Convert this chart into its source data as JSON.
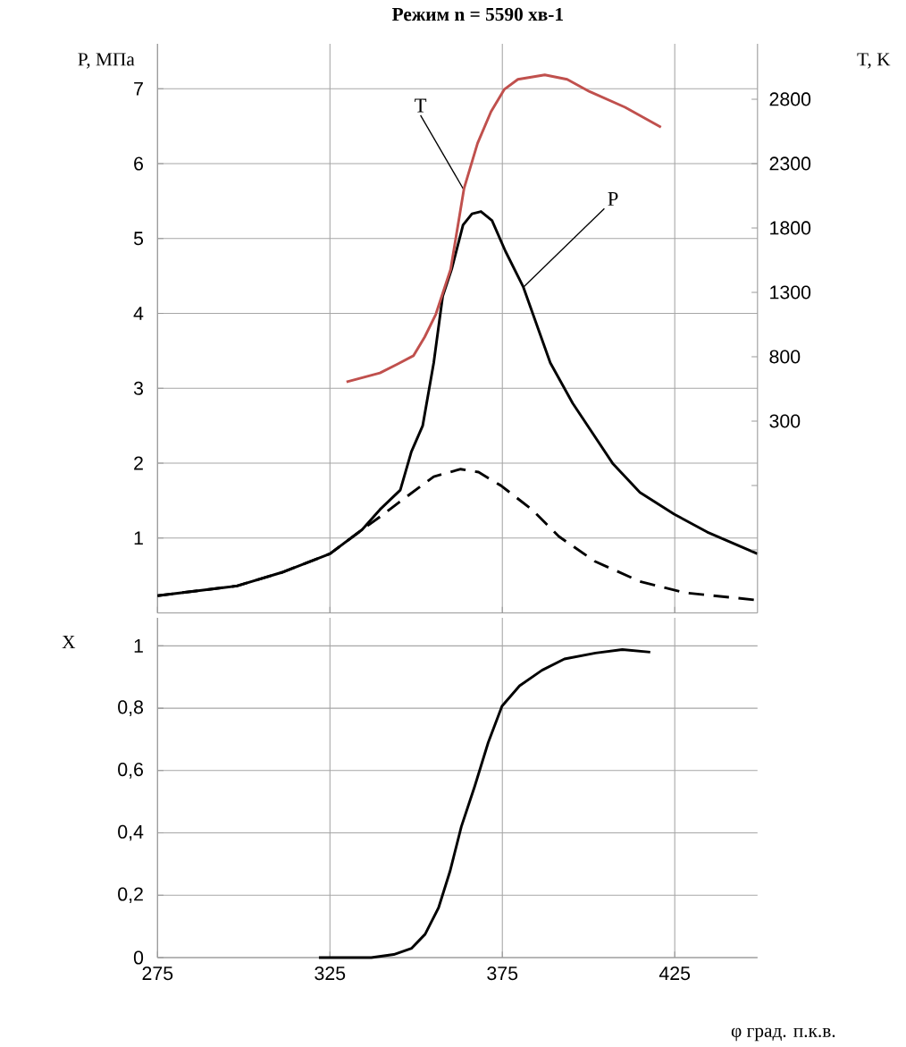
{
  "chart_data": [
    {
      "type": "line",
      "title": "Режим n = 5590 хв-1",
      "ylabel": "P, МПа",
      "y2label": "T, K",
      "xlim": [
        275,
        449
      ],
      "xticks": [
        275,
        325,
        375,
        425
      ],
      "ylim": [
        0,
        7.6
      ],
      "yticks": [
        1,
        2,
        3,
        4,
        5,
        6,
        7
      ],
      "y2lim": [
        -1190,
        3230
      ],
      "y2ticks": [
        {
          "value": -700,
          "label": null
        },
        {
          "value": -200,
          "label": null
        },
        300,
        800,
        1300,
        1800,
        2300,
        2800
      ],
      "grid": true,
      "marker": "none",
      "tick_labels": "y",
      "series": [
        {
          "color": "#000000",
          "line_style": "solid",
          "x": [
            275,
            298,
            311,
            325,
            334.3,
            339.5,
            345.4,
            348.6,
            351.9,
            355.1,
            357.7,
            360.3,
            363.6,
            366.2,
            368.8,
            372,
            375.9,
            381.1,
            388.9,
            395.4,
            407.1,
            414.9,
            424.8,
            434.4,
            449
          ],
          "values": [
            0.23,
            0.36,
            0.54,
            0.79,
            1.11,
            1.38,
            1.64,
            2.15,
            2.5,
            3.34,
            4.23,
            4.59,
            5.18,
            5.33,
            5.36,
            5.24,
            4.83,
            4.35,
            3.34,
            2.8,
            1.99,
            1.61,
            1.32,
            1.08,
            0.79
          ]
        },
        {
          "color": "#000000",
          "line_style": "dashed",
          "x": [
            275,
            298,
            311,
            325,
            334.3,
            340,
            345.4,
            355.1,
            362.9,
            368.1,
            374.6,
            383.6,
            391.4,
            401.8,
            414.9,
            427.9,
            449
          ],
          "values": [
            0.23,
            0.36,
            0.54,
            0.79,
            1.11,
            1.3,
            1.49,
            1.82,
            1.92,
            1.88,
            1.7,
            1.38,
            1.02,
            0.69,
            0.42,
            0.27,
            0.17
          ]
        },
        {
          "color": "#c0504d",
          "line_style": "solid",
          "axis": "y2",
          "x": [
            329.8,
            339.5,
            344.7,
            349.2,
            352.5,
            355.7,
            360,
            363.9,
            367.8,
            371.7,
            375.6,
            379.5,
            387.3,
            393.8,
            400.3,
            410.6,
            421
          ],
          "values": [
            604,
            674,
            744,
            807,
            954,
            1129,
            1478,
            2108,
            2457,
            2702,
            2877,
            2954,
            2989,
            2954,
            2859,
            2737,
            2583
          ]
        }
      ],
      "annotations": [
        {
          "text": "T",
          "x": 363.7,
          "y": 5.66
        },
        {
          "text": "P",
          "x": 381.1,
          "y": 4.35
        }
      ]
    },
    {
      "type": "line",
      "ylabel": "X",
      "xlabel": "φ град. п.к.в.",
      "xlim": [
        275,
        449
      ],
      "xticks": [
        275,
        325,
        375,
        425
      ],
      "ylim": [
        0,
        1.09
      ],
      "yticks": [
        0,
        {
          "value": 0.2,
          "label": "0,2"
        },
        {
          "value": 0.4,
          "label": "0,4"
        },
        {
          "value": 0.6,
          "label": "0,6"
        },
        {
          "value": 0.8,
          "label": "0,8"
        },
        1
      ],
      "grid": true,
      "marker": "none",
      "series": [
        {
          "color": "#000000",
          "line_style": "solid",
          "x": [
            321.8,
            337,
            343.5,
            348.7,
            352.6,
            356.5,
            359.8,
            363.1,
            367,
            370.9,
            374.9,
            380,
            386.5,
            393,
            402,
            409.8,
            417.9
          ],
          "values": [
            0,
            0,
            0.01,
            0.03,
            0.075,
            0.16,
            0.276,
            0.42,
            0.55,
            0.69,
            0.807,
            0.872,
            0.922,
            0.958,
            0.977,
            0.988,
            0.98
          ]
        }
      ]
    }
  ]
}
